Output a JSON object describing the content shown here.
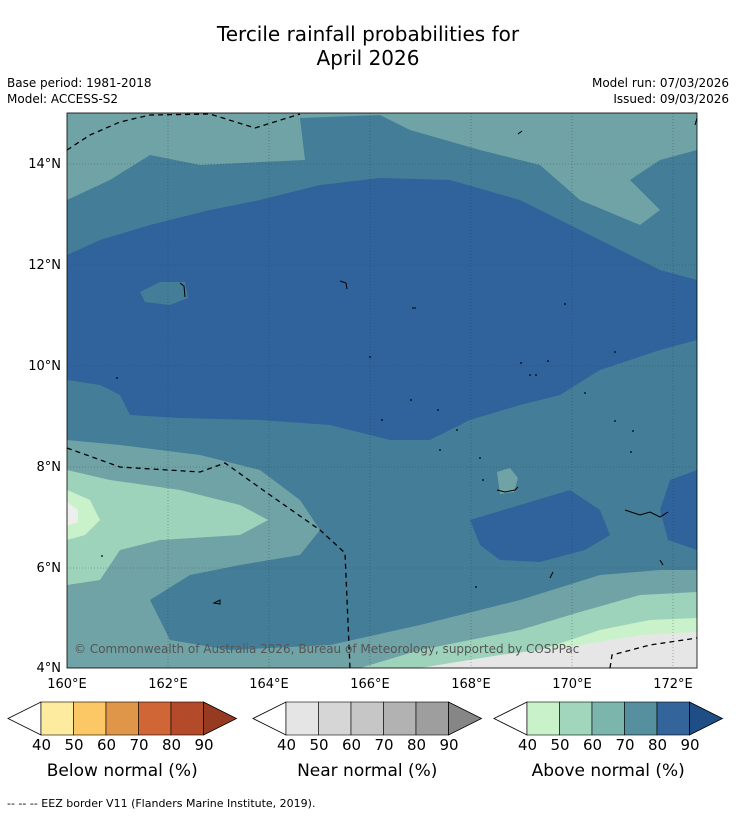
{
  "title": {
    "line1": "Tercile rainfall probabilities for",
    "line2": "April 2026"
  },
  "meta": {
    "base_period": "Base period: 1981-2018",
    "model": "Model: ACCESS-S2",
    "model_run": "Model run: 07/03/2026",
    "issued": "Issued: 09/03/2026"
  },
  "map": {
    "lon_range": [
      160,
      172.5
    ],
    "lat_range": [
      4,
      15
    ],
    "lon_ticks": [
      "160°E",
      "162°E",
      "164°E",
      "166°E",
      "168°E",
      "170°E",
      "172°E"
    ],
    "lat_ticks": [
      "4°N",
      "6°N",
      "8°N",
      "10°N",
      "12°N",
      "14°N"
    ],
    "copyright": "© Commonwealth of Australia 2026, Bureau of Meteorology, supported by COSPPac",
    "colors": {
      "above_60": "#9ed3bb",
      "above_70": "#6fa3a6",
      "above_80": "#447d98",
      "above_90": "#30639b",
      "near_light": "#e6e6e6"
    }
  },
  "legends": [
    {
      "title": "Below normal (%)",
      "ticks": [
        "40",
        "50",
        "60",
        "70",
        "80",
        "90"
      ],
      "colors": [
        "#ffffff",
        "#fdeba0",
        "#fcc865",
        "#e09648",
        "#d06536",
        "#b34a2a",
        "#963a22"
      ]
    },
    {
      "title": "Near normal (%)",
      "ticks": [
        "40",
        "50",
        "60",
        "70",
        "80",
        "90"
      ],
      "colors": [
        "#ffffff",
        "#e5e5e5",
        "#d6d6d6",
        "#c6c6c6",
        "#b2b2b2",
        "#9e9e9e",
        "#868686"
      ]
    },
    {
      "title": "Above normal (%)",
      "ticks": [
        "40",
        "50",
        "60",
        "70",
        "80",
        "90"
      ],
      "colors": [
        "#ffffff",
        "#c9f2cb",
        "#a1d6bd",
        "#7cb5ac",
        "#56909f",
        "#33659a",
        "#1f4e86"
      ]
    }
  ],
  "footnote": "--  --  -- EEZ border V11 (Flanders Marine Institute, 2019)."
}
